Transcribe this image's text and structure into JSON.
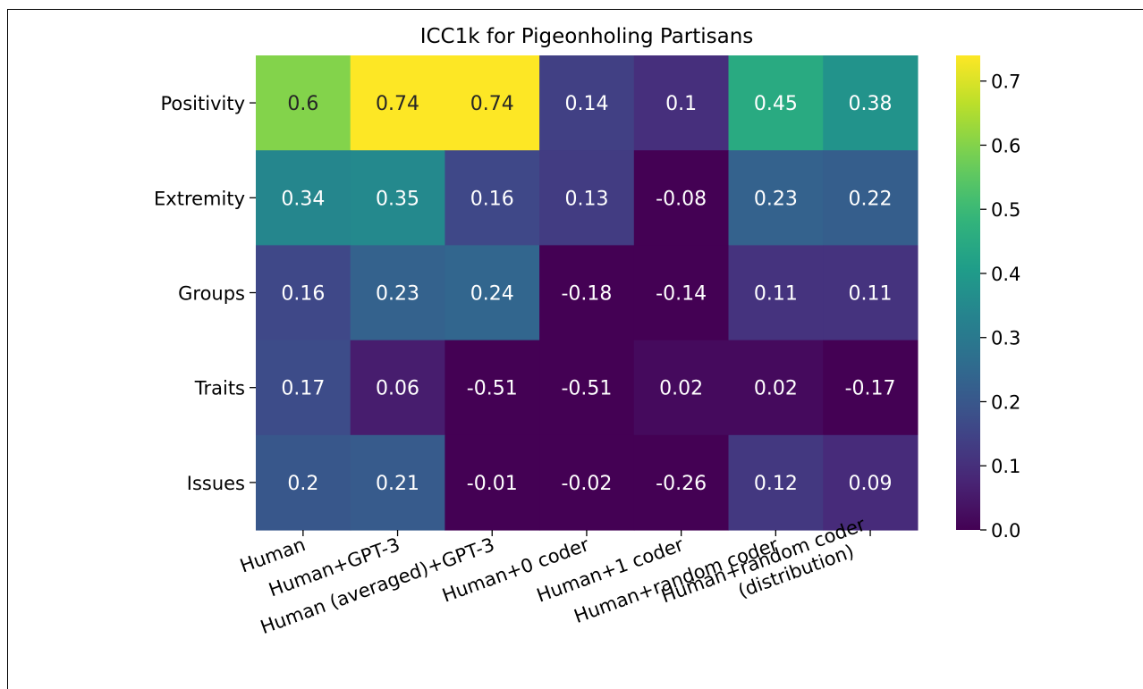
{
  "chart_data": {
    "type": "heatmap",
    "title": "ICC1k for Pigeonholing Partisans",
    "rows": [
      "Positivity",
      "Extremity",
      "Groups",
      "Traits",
      "Issues"
    ],
    "columns": [
      [
        "Human"
      ],
      [
        "Human+GPT-3"
      ],
      [
        "Human (averaged)+GPT-3"
      ],
      [
        "Human+0 coder"
      ],
      [
        "Human+1 coder"
      ],
      [
        "Human+random coder"
      ],
      [
        "Human+random coder",
        "(distribution)"
      ]
    ],
    "values": [
      [
        0.6,
        0.74,
        0.74,
        0.14,
        0.1,
        0.45,
        0.38
      ],
      [
        0.34,
        0.35,
        0.16,
        0.13,
        -0.08,
        0.23,
        0.22
      ],
      [
        0.16,
        0.23,
        0.24,
        -0.18,
        -0.14,
        0.11,
        0.11
      ],
      [
        0.17,
        0.06,
        -0.51,
        -0.51,
        0.02,
        0.02,
        -0.17
      ],
      [
        0.2,
        0.21,
        -0.01,
        -0.02,
        -0.26,
        0.12,
        0.09
      ]
    ],
    "colormap": "viridis",
    "colorbar": {
      "vmin": 0.0,
      "vmax": 0.74,
      "ticks": [
        0.0,
        0.1,
        0.2,
        0.3,
        0.4,
        0.5,
        0.6,
        0.7
      ],
      "tick_labels": [
        "0.0",
        "0.1",
        "0.2",
        "0.3",
        "0.4",
        "0.5",
        "0.6",
        "0.7"
      ]
    },
    "annotations": true,
    "xlabel": "",
    "ylabel": ""
  }
}
